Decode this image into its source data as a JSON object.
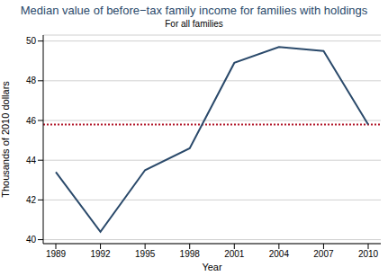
{
  "chart_data": {
    "type": "line",
    "title": "Median value of before−tax family income for families with holdings",
    "subtitle": "For all families",
    "x_label": "Year",
    "y_label": "Thousands of 2010 dollars",
    "categories": [
      "1989",
      "1992",
      "1995",
      "1998",
      "2001",
      "2004",
      "2007",
      "2010"
    ],
    "values": [
      43.4,
      40.4,
      43.5,
      44.6,
      48.9,
      49.7,
      49.5,
      45.8
    ],
    "color": "#2b4a6b",
    "ylim": [
      39.8,
      50.3
    ],
    "yticks": [
      40,
      42,
      44,
      46,
      48,
      50
    ],
    "grid": true,
    "reference_line": 45.8
  }
}
